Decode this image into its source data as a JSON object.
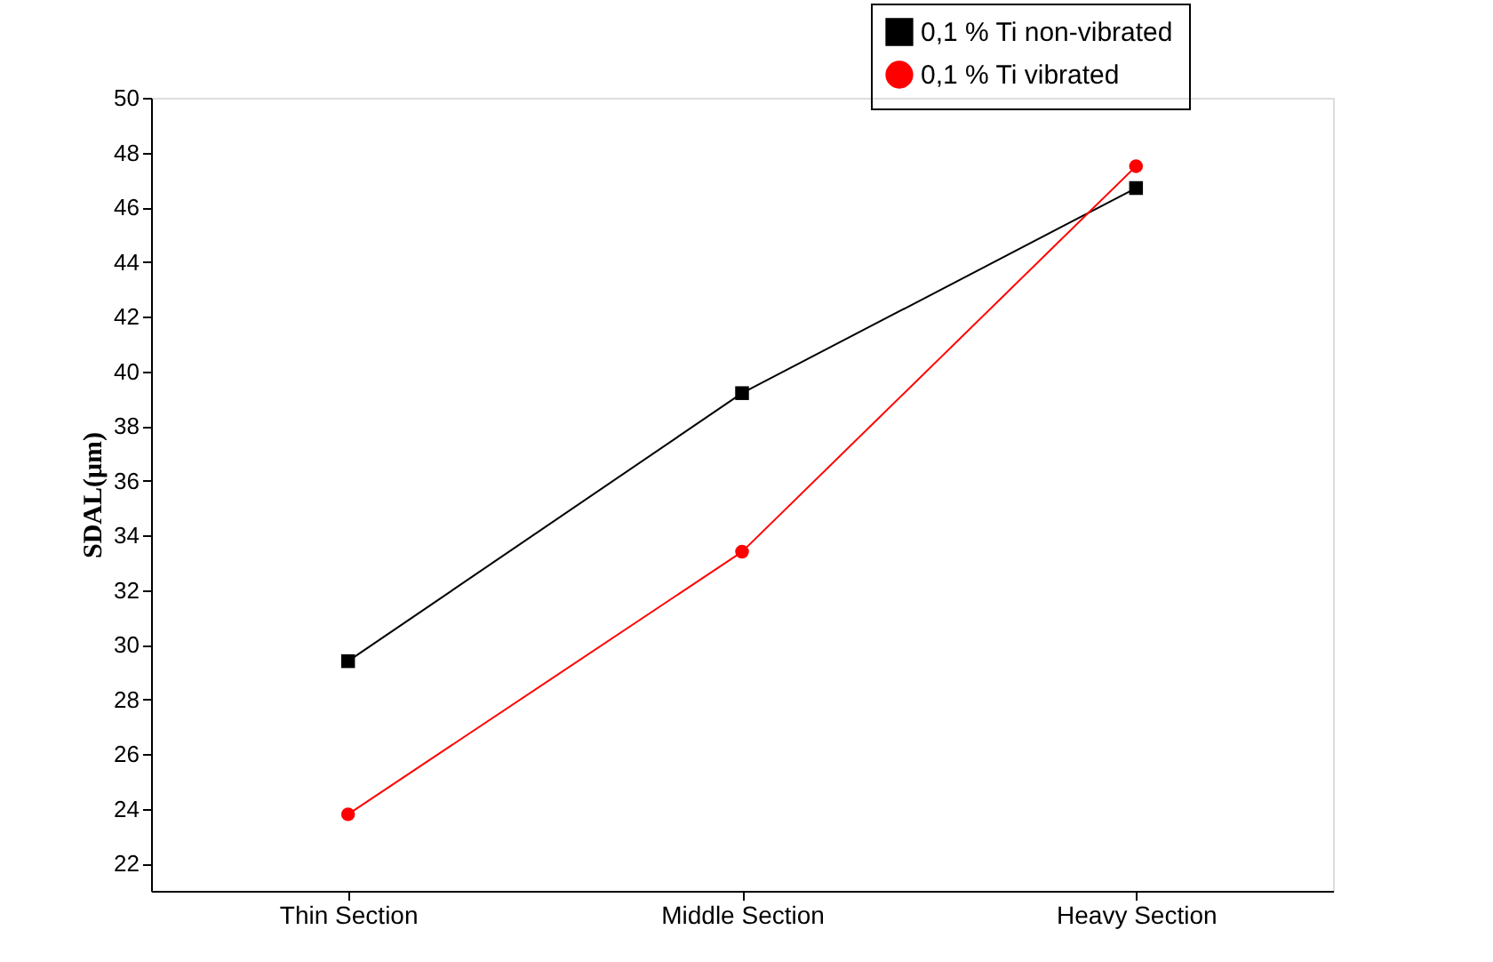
{
  "chart_data": {
    "type": "line",
    "ylabel": "SDAL(μm)",
    "categories": [
      "Thin Section",
      "Middle Section",
      "Heavy Section"
    ],
    "series": [
      {
        "name": "0,1 % Ti non-vibrated",
        "color": "#000000",
        "marker": "square",
        "values": [
          29.4,
          39.2,
          46.7
        ]
      },
      {
        "name": "0,1 % Ti vibrated",
        "color": "#ff0000",
        "marker": "circle",
        "values": [
          23.8,
          33.4,
          47.5
        ]
      }
    ],
    "ylim": [
      21,
      50
    ],
    "yticks": [
      22,
      24,
      26,
      28,
      30,
      32,
      34,
      36,
      38,
      40,
      42,
      44,
      46,
      48,
      50
    ],
    "grid": false,
    "legend": "top right",
    "line_style": "solid"
  }
}
